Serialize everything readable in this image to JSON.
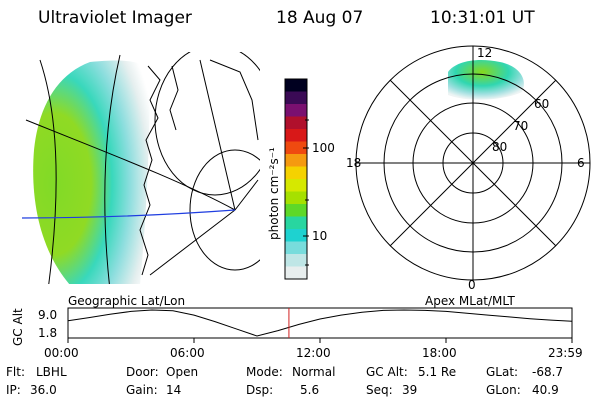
{
  "header": {
    "title": "Ultraviolet Imager",
    "date": "18 Aug 07",
    "time": "10:31:01 UT"
  },
  "colorbar": {
    "unit": "photon cm⁻²s⁻¹",
    "ticks": [
      "100",
      "10"
    ],
    "colors": [
      "#000020",
      "#3a0a55",
      "#7a1070",
      "#b0102c",
      "#d81818",
      "#ef4a10",
      "#f59a10",
      "#f5d200",
      "#d6e800",
      "#a6e000",
      "#5ed828",
      "#28d6a0",
      "#1ed2d0",
      "#78dcdc",
      "#bfe6e6",
      "#e8eeee"
    ]
  },
  "polar_plot": {
    "labels": {
      "top": "12",
      "left": "18",
      "right": "6",
      "bottom": "0"
    },
    "rings": [
      "60",
      "70",
      "80"
    ]
  },
  "projection_labels": {
    "geo": "Geographic Lat/Lon",
    "apex": "Apex MLat/MLT"
  },
  "chart_data": {
    "type": "line",
    "title": "",
    "ylabel": "GC Alt",
    "yticks": [
      "9.0",
      "1.8"
    ],
    "xticks": [
      "00:00",
      "06:00",
      "12:00",
      "18:00",
      "23:59"
    ],
    "x": [
      0,
      1,
      2,
      3,
      4,
      5,
      6,
      7,
      8,
      9,
      10,
      11,
      12,
      13,
      14,
      15,
      16,
      17,
      18,
      19,
      20,
      21,
      22,
      23,
      24
    ],
    "y": [
      6.0,
      6.9,
      7.8,
      8.6,
      9.0,
      8.8,
      7.6,
      5.8,
      3.8,
      1.8,
      3.3,
      5.0,
      6.5,
      7.6,
      8.4,
      8.9,
      9.0,
      8.9,
      8.6,
      8.1,
      7.6,
      7.1,
      6.6,
      6.2,
      5.9
    ],
    "ylim": [
      1.8,
      9.0
    ],
    "current_time_hours": 10.52
  },
  "footer": [
    {
      "label": "Flt:",
      "value": "LBHL"
    },
    {
      "label": "Door:",
      "value": "Open"
    },
    {
      "label": "Mode:",
      "value": "Normal"
    },
    {
      "label": "GC Alt:",
      "value": "5.1 Re"
    },
    {
      "label": "GLat:",
      "value": "-68.7"
    },
    {
      "label": "IP:",
      "value": "36.0"
    },
    {
      "label": "Gain:",
      "value": "14"
    },
    {
      "label": "Dsp:",
      "value": "5.6"
    },
    {
      "label": "Seq:",
      "value": "39"
    },
    {
      "label": "GLon:",
      "value": "40.9"
    }
  ]
}
